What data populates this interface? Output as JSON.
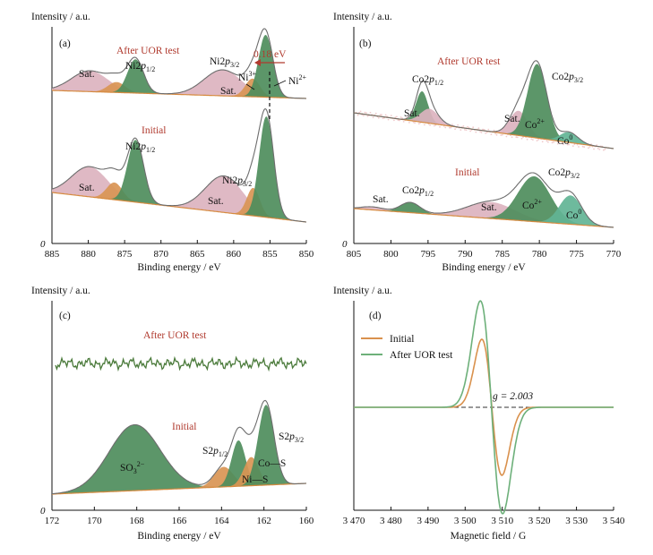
{
  "panels": [
    {
      "id": "a",
      "label": "(a)",
      "ylabel": "Intensity / a.u.",
      "xlabel": "Binding energy / eV",
      "xticks": [
        "885",
        "880",
        "875",
        "870",
        "865",
        "860",
        "855",
        "850"
      ],
      "origin_label": "0",
      "groups": [
        {
          "name": "After UOR test",
          "labels": [
            "Sat.",
            "Ni2p1/2",
            "Ni2p3/2",
            "Sat.",
            "Ni3+",
            "Ni2+"
          ]
        },
        {
          "name": "Initial",
          "labels": [
            "Sat.",
            "Ni2p1/2",
            "Ni2p3/2",
            "Sat."
          ]
        }
      ],
      "shift_annotation": "0.18 eV"
    },
    {
      "id": "b",
      "label": "(b)",
      "ylabel": "Intensity / a.u.",
      "xlabel": "Binding energy / eV",
      "xticks": [
        "805",
        "800",
        "795",
        "790",
        "785",
        "780",
        "775",
        "770"
      ],
      "origin_label": "0",
      "groups": [
        {
          "name": "After UOR test",
          "labels": [
            "Co2p1/2",
            "Sat.",
            "Co2p3/2",
            "Sat.",
            "Co2+",
            "Co0"
          ]
        },
        {
          "name": "Initial",
          "labels": [
            "Sat.",
            "Co2p1/2",
            "Co2p3/2",
            "Sat.",
            "Co2+",
            "Co0"
          ]
        }
      ]
    },
    {
      "id": "c",
      "label": "(c)",
      "ylabel": "Intensity / a.u.",
      "xlabel": "Binding energy / eV",
      "xticks": [
        "172",
        "170",
        "168",
        "166",
        "164",
        "162",
        "160"
      ],
      "origin_label": "0",
      "groups": [
        {
          "name": "After UOR test",
          "labels": []
        },
        {
          "name": "Initial",
          "labels": [
            "SO32−",
            "S2p1/2",
            "S2p3/2",
            "Co—S",
            "Ni—S"
          ]
        }
      ]
    },
    {
      "id": "d",
      "label": "(d)",
      "ylabel": "Intensity / a.u.",
      "xlabel": "Magnetic field / G",
      "xticks": [
        "3 470",
        "3 480",
        "3 490",
        "3 500",
        "3 510",
        "3 520",
        "3 530",
        "3 540"
      ],
      "legend": [
        "Initial",
        "After UOR test"
      ],
      "g_annotation": "g = 2.003"
    }
  ],
  "colors": {
    "envelope": "#6d6d6d",
    "background": "#d68a3f",
    "satellite": "#dcb3bf",
    "green_main": "#4e8d5c",
    "teal": "#62b495",
    "orange": "#d99554",
    "after_noise": "#4a7a3a",
    "epr_initial": "#d9914d",
    "epr_after": "#6db07a",
    "title_red": "#b03a2e"
  },
  "chart_data": [
    {
      "type": "line",
      "panel": "a",
      "xlabel": "Binding energy / eV",
      "ylabel": "Intensity / a.u.",
      "xlim": [
        885,
        850
      ],
      "ylim": [
        0,
        1
      ],
      "series": [
        {
          "name": "After UOR test",
          "components": [
            {
              "label": "Sat.",
              "center": 879.8,
              "height": 0.08,
              "width": 2.5
            },
            {
              "label": "",
              "center": 876.1,
              "height": 0.04,
              "width": 1.2
            },
            {
              "label": "Ni2p1/2",
              "center": 873.5,
              "height": 0.13,
              "width": 1.1
            },
            {
              "label": "Sat.",
              "center": 861.5,
              "height": 0.1,
              "width": 2.6
            },
            {
              "label": "Ni3+",
              "center": 857.4,
              "height": 0.07,
              "width": 1.0
            },
            {
              "label": "Ni2+",
              "center": 855.6,
              "height": 0.24,
              "width": 1.0
            }
          ]
        },
        {
          "name": "Initial",
          "components": [
            {
              "label": "Sat.",
              "center": 879.8,
              "height": 0.14,
              "width": 2.5
            },
            {
              "label": "",
              "center": 876.4,
              "height": 0.08,
              "width": 1.1
            },
            {
              "label": "Ni2p1/2",
              "center": 873.5,
              "height": 0.29,
              "width": 1.1
            },
            {
              "label": "Sat.",
              "center": 861.3,
              "height": 0.17,
              "width": 2.6
            },
            {
              "label": "",
              "center": 857.3,
              "height": 0.13,
              "width": 0.9
            },
            {
              "label": "Ni2p3/2",
              "center": 855.5,
              "height": 0.47,
              "width": 1.0
            }
          ]
        }
      ]
    },
    {
      "type": "line",
      "panel": "b",
      "xlabel": "Binding energy / eV",
      "ylabel": "Intensity / a.u.",
      "xlim": [
        805,
        770
      ],
      "ylim": [
        0,
        1
      ],
      "series": [
        {
          "name": "After UOR test",
          "components": [
            {
              "label": "Co2p1/2",
              "center": 795.8,
              "height": 0.15,
              "width": 0.8
            },
            {
              "label": "Sat.",
              "center": 794.8,
              "height": 0.07,
              "width": 1.2
            },
            {
              "label": "Sat.",
              "center": 782.8,
              "height": 0.12,
              "width": 1.2
            },
            {
              "label": "Co2+",
              "center": 780.3,
              "height": 0.36,
              "width": 1.3
            },
            {
              "label": "Co0",
              "center": 776.0,
              "height": 0.05,
              "width": 1.2
            }
          ]
        },
        {
          "name": "Initial",
          "components": [
            {
              "label": "Sat.",
              "center": 802.5,
              "height": 0.015,
              "width": 1.5
            },
            {
              "label": "Co2p1/2",
              "center": 797.4,
              "height": 0.05,
              "width": 1.3
            },
            {
              "label": "Sat.",
              "center": 786.5,
              "height": 0.08,
              "width": 3.2
            },
            {
              "label": "Co2+",
              "center": 780.7,
              "height": 0.22,
              "width": 2.2
            },
            {
              "label": "Co0",
              "center": 775.8,
              "height": 0.14,
              "width": 1.5
            }
          ]
        }
      ]
    },
    {
      "type": "line",
      "panel": "c",
      "xlabel": "Binding energy / eV",
      "ylabel": "Intensity / a.u.",
      "xlim": [
        172,
        160
      ],
      "ylim": [
        0,
        1
      ],
      "series": [
        {
          "name": "After UOR test",
          "components": []
        },
        {
          "name": "Initial",
          "components": [
            {
              "label": "SO32−",
              "center": 168.1,
              "height": 0.23,
              "width": 1.2
            },
            {
              "label": "S2p1/2",
              "center": 163.9,
              "height": 0.07,
              "width": 0.45
            },
            {
              "label": "",
              "center": 163.2,
              "height": 0.16,
              "width": 0.33
            },
            {
              "label": "Ni—S",
              "center": 162.6,
              "height": 0.1,
              "width": 0.35
            },
            {
              "label": "Co—S",
              "center": 161.9,
              "height": 0.28,
              "width": 0.38
            }
          ]
        }
      ]
    },
    {
      "type": "line",
      "panel": "d",
      "xlabel": "Magnetic field / G",
      "ylabel": "Intensity / a.u.",
      "xlim": [
        3470,
        3540
      ],
      "series": [
        {
          "name": "Initial",
          "center": 3507.2,
          "width": 2.7,
          "amplitude": 0.23
        },
        {
          "name": "After UOR test",
          "center": 3507.1,
          "width": 3.0,
          "amplitude": 0.36
        }
      ],
      "baseline": 0
    }
  ]
}
